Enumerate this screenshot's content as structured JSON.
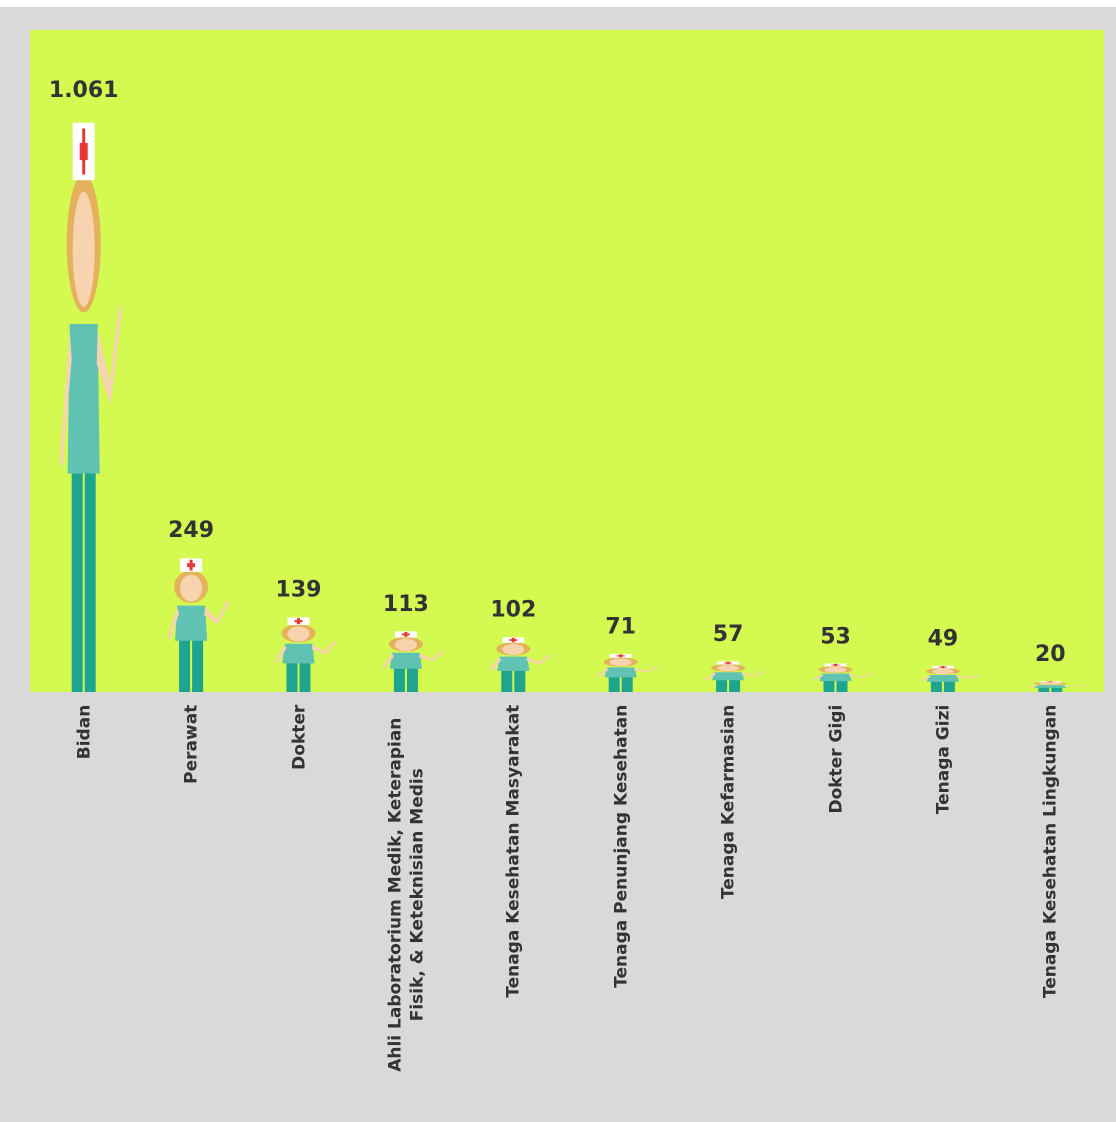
{
  "chart_data": {
    "type": "pictograph",
    "categories": [
      "Bidan",
      "Perawat",
      "Dokter",
      "Ahli Laboratorium Medik, Keterapian Fisik, & Keteknisian Medis",
      "Tenaga Kesehatan Masyarakat",
      "Tenaga Penunjang Kesehatan",
      "Tenaga Kefarmasian",
      "Dokter Gigi",
      "Tenaga Gizi",
      "Tenaga Kesehatan Lingkungan"
    ],
    "values": [
      1061,
      249,
      139,
      113,
      102,
      71,
      57,
      53,
      49,
      20
    ],
    "value_labels": [
      "1.061",
      "249",
      "139",
      "113",
      "102",
      "71",
      "57",
      "53",
      "49",
      "20"
    ],
    "background": "#d4f950"
  }
}
